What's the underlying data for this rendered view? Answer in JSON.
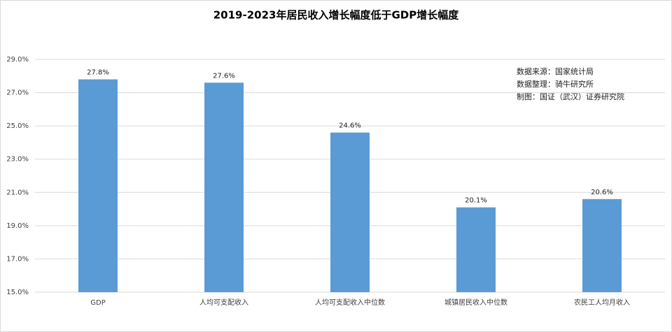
{
  "chart_data": {
    "type": "bar",
    "title": "2019-2023年居民收入增长幅度低于GDP增长幅度",
    "categories": [
      "GDP",
      "人均可支配收入",
      "人均可支配收入中位数",
      "城镇居民收入中位数",
      "农民工人均月收入"
    ],
    "values": [
      27.8,
      27.6,
      24.6,
      20.1,
      20.6
    ],
    "value_labels": [
      "27.8%",
      "27.6%",
      "24.6%",
      "20.1%",
      "20.6%"
    ],
    "color": "#5b9bd5",
    "ylim": [
      15,
      29
    ],
    "yticks": [
      {
        "value": 15,
        "label": "15.0%"
      },
      {
        "value": 17,
        "label": "17.0%"
      },
      {
        "value": 19,
        "label": "19.0%"
      },
      {
        "value": 21,
        "label": "21.0%"
      },
      {
        "value": 23,
        "label": "23.0%"
      },
      {
        "value": 25,
        "label": "25.0%"
      },
      {
        "value": 27,
        "label": "27.0%"
      },
      {
        "value": 29,
        "label": "29.0%"
      }
    ],
    "grid": true,
    "annotations": [
      "数据来源：国家统计局",
      "数据整理：骑牛研究所",
      "制图：国证（武汉）证券研究院"
    ]
  }
}
